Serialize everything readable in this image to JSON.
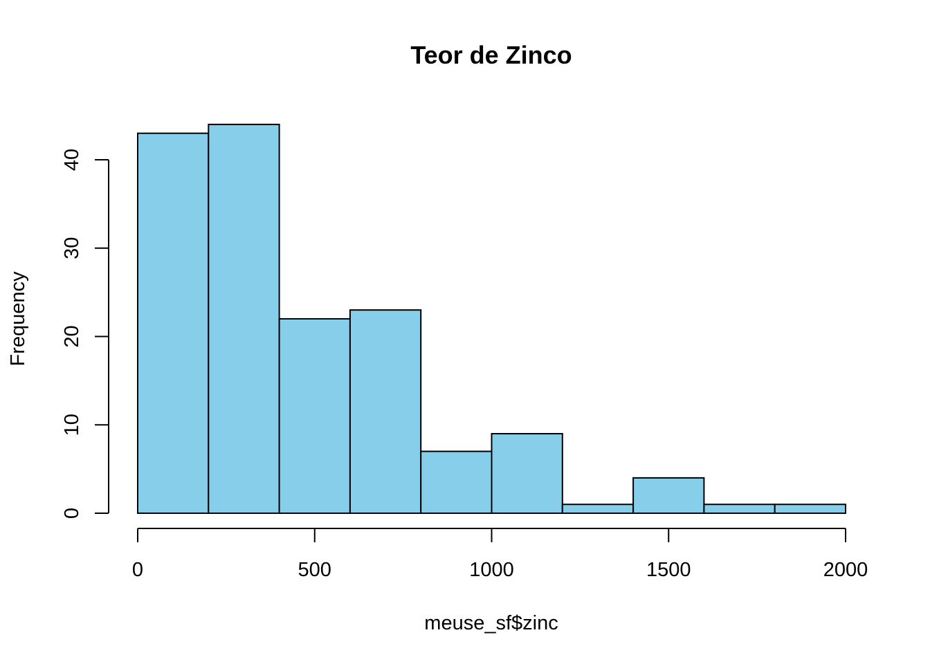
{
  "chart_data": {
    "type": "bar",
    "title": "Teor de Zinco",
    "xlabel": "meuse_sf$zinc",
    "ylabel": "Frequency",
    "bin_edges": [
      0,
      200,
      400,
      600,
      800,
      1000,
      1200,
      1400,
      1600,
      1800,
      2000
    ],
    "values": [
      43,
      44,
      22,
      23,
      7,
      9,
      1,
      4,
      1,
      1
    ],
    "xlim": [
      0,
      2000
    ],
    "ylim": [
      0,
      44
    ],
    "x_ticks": [
      0,
      500,
      1000,
      1500,
      2000
    ],
    "y_ticks": [
      0,
      10,
      20,
      30,
      40
    ],
    "bar_color": "#87ceeb",
    "grid": false
  }
}
